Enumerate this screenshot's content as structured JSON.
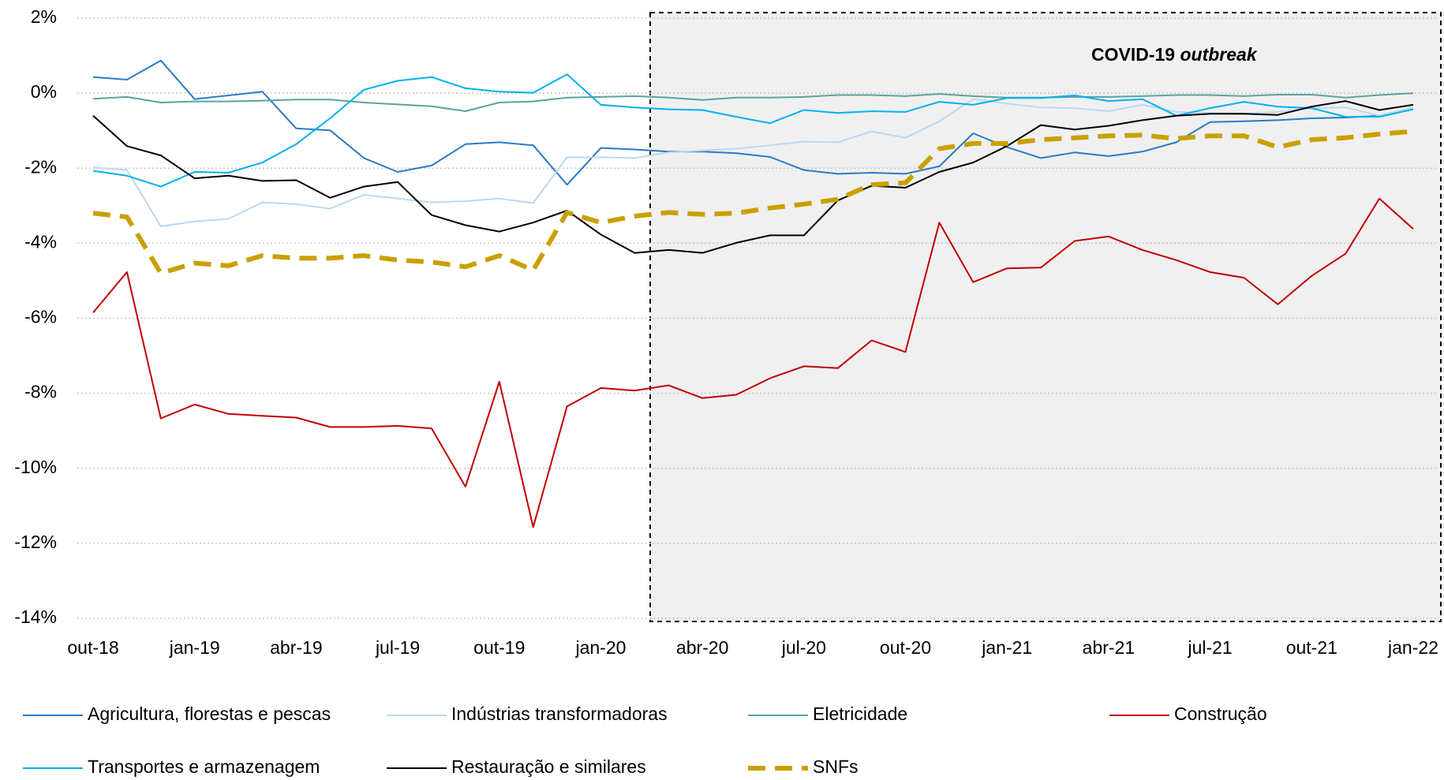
{
  "chart_data": {
    "type": "line",
    "annotation": [
      "COVID-19",
      "outbreak"
    ],
    "categories": [
      "out-18",
      null,
      null,
      "jan-19",
      null,
      null,
      "abr-19",
      null,
      null,
      "jul-19",
      null,
      null,
      "out-19",
      null,
      null,
      "jan-20",
      null,
      null,
      "abr-20",
      null,
      null,
      "jul-20",
      null,
      null,
      "out-20",
      null,
      null,
      "jan-21",
      null,
      null,
      "abr-21",
      null,
      null,
      "jul-21",
      null,
      null,
      "out-21",
      null,
      null,
      "jan-22"
    ],
    "ylim": [
      -14,
      2
    ],
    "yticks": [
      {
        "value": 2,
        "label": "2%"
      },
      {
        "value": 0,
        "label": "0%"
      },
      {
        "value": -2,
        "label": "-2%"
      },
      {
        "value": -4,
        "label": "-4%"
      },
      {
        "value": -6,
        "label": "-6%"
      },
      {
        "value": -8,
        "label": "-8%"
      },
      {
        "value": -10,
        "label": "-10%"
      },
      {
        "value": -12,
        "label": "-12%"
      },
      {
        "value": -14,
        "label": "-14%"
      }
    ],
    "grid": true,
    "legend": "bottom",
    "series": [
      {
        "name": "Agricultura, florestas e pescas",
        "color": "#2a7ac9",
        "values": [
          0.43,
          0.36,
          0.87,
          -0.16,
          -0.06,
          0.04,
          -0.94,
          -0.99,
          -1.73,
          -2.1,
          -1.93,
          -1.36,
          -1.31,
          -1.39,
          -2.44,
          -1.46,
          -1.5,
          -1.56,
          -1.56,
          -1.6,
          -1.7,
          -2.05,
          -2.15,
          -2.12,
          -2.15,
          -1.95,
          -1.07,
          -1.44,
          -1.73,
          -1.58,
          -1.68,
          -1.56,
          -1.31,
          -0.77,
          -0.75,
          -0.72,
          -0.67,
          -0.65,
          -0.6,
          -0.4
        ]
      },
      {
        "name": "Indústrias transformadoras",
        "color": "#bdd7ee",
        "values": [
          -1.98,
          -2.05,
          -3.55,
          -3.42,
          -3.35,
          -2.91,
          -2.96,
          -3.08,
          -2.71,
          -2.81,
          -2.91,
          -2.88,
          -2.81,
          -2.93,
          -1.71,
          -1.71,
          -1.73,
          -1.58,
          -1.53,
          -1.48,
          -1.39,
          -1.29,
          -1.31,
          -1.02,
          -1.19,
          -0.75,
          -0.16,
          -0.28,
          -0.38,
          -0.4,
          -0.48,
          -0.31,
          -0.5,
          -0.53,
          -0.55,
          -0.5,
          -0.4,
          -0.38,
          -0.6,
          -0.4
        ]
      },
      {
        "name": "Eletricidade",
        "color": "#5ba3a0",
        "values": [
          -0.15,
          -0.1,
          -0.25,
          -0.22,
          -0.22,
          -0.2,
          -0.17,
          -0.17,
          -0.25,
          -0.3,
          -0.35,
          -0.48,
          -0.25,
          -0.22,
          -0.12,
          -0.1,
          -0.08,
          -0.12,
          -0.18,
          -0.12,
          -0.12,
          -0.1,
          -0.05,
          -0.05,
          -0.08,
          -0.02,
          -0.08,
          -0.12,
          -0.12,
          -0.1,
          -0.1,
          -0.08,
          -0.05,
          -0.05,
          -0.08,
          -0.04,
          -0.04,
          -0.12,
          -0.05,
          0
        ]
      },
      {
        "name": "Construção",
        "color": "#c00000",
        "values": [
          -5.85,
          -4.77,
          -8.67,
          -8.3,
          -8.55,
          -8.6,
          -8.65,
          -8.9,
          -8.9,
          -8.87,
          -8.94,
          -10.49,
          -7.69,
          -11.57,
          -8.35,
          -7.86,
          -7.93,
          -7.79,
          -8.13,
          -8.04,
          -7.6,
          -7.28,
          -7.33,
          -6.59,
          -6.9,
          -3.45,
          -5.04,
          -4.67,
          -4.65,
          -3.94,
          -3.82,
          -4.18,
          -4.45,
          -4.77,
          -4.92,
          -5.63,
          -4.87,
          -4.28,
          -2.81,
          -3.62
        ]
      },
      {
        "name": "Transportes e armazenagem",
        "color": "#00b0f0",
        "values": [
          -2.07,
          -2.2,
          -2.49,
          -2.1,
          -2.12,
          -1.85,
          -1.36,
          -0.67,
          0.09,
          0.33,
          0.43,
          0.13,
          0.04,
          0.01,
          0.5,
          -0.31,
          -0.38,
          -0.43,
          -0.45,
          -0.63,
          -0.8,
          -0.45,
          -0.53,
          -0.48,
          -0.5,
          -0.23,
          -0.31,
          -0.13,
          -0.13,
          -0.06,
          -0.21,
          -0.16,
          -0.6,
          -0.4,
          -0.23,
          -0.36,
          -0.4,
          -0.63,
          -0.63,
          -0.43
        ]
      },
      {
        "name": "Restauração e similares",
        "color": "#000000",
        "values": [
          -0.6,
          -1.41,
          -1.66,
          -2.27,
          -2.2,
          -2.34,
          -2.32,
          -2.79,
          -2.49,
          -2.37,
          -3.25,
          -3.52,
          -3.69,
          -3.45,
          -3.13,
          -3.77,
          -4.26,
          -4.18,
          -4.26,
          -3.99,
          -3.79,
          -3.79,
          -2.86,
          -2.47,
          -2.52,
          -2.1,
          -1.85,
          -1.41,
          -0.85,
          -0.97,
          -0.87,
          -0.72,
          -0.6,
          -0.55,
          -0.55,
          -0.58,
          -0.36,
          -0.21,
          -0.45,
          -0.31
        ]
      },
      {
        "name": "SNFs",
        "color": "#c9a000",
        "style": "dashed",
        "values": [
          -3.2,
          -3.3,
          -4.8,
          -4.53,
          -4.6,
          -4.33,
          -4.4,
          -4.4,
          -4.33,
          -4.45,
          -4.5,
          -4.63,
          -4.33,
          -4.72,
          -3.18,
          -3.45,
          -3.28,
          -3.18,
          -3.23,
          -3.2,
          -3.06,
          -2.96,
          -2.83,
          -2.44,
          -2.39,
          -1.48,
          -1.34,
          -1.34,
          -1.24,
          -1.19,
          -1.14,
          -1.12,
          -1.21,
          -1.14,
          -1.14,
          -1.44,
          -1.24,
          -1.19,
          -1.09,
          -1.02
        ]
      }
    ]
  }
}
